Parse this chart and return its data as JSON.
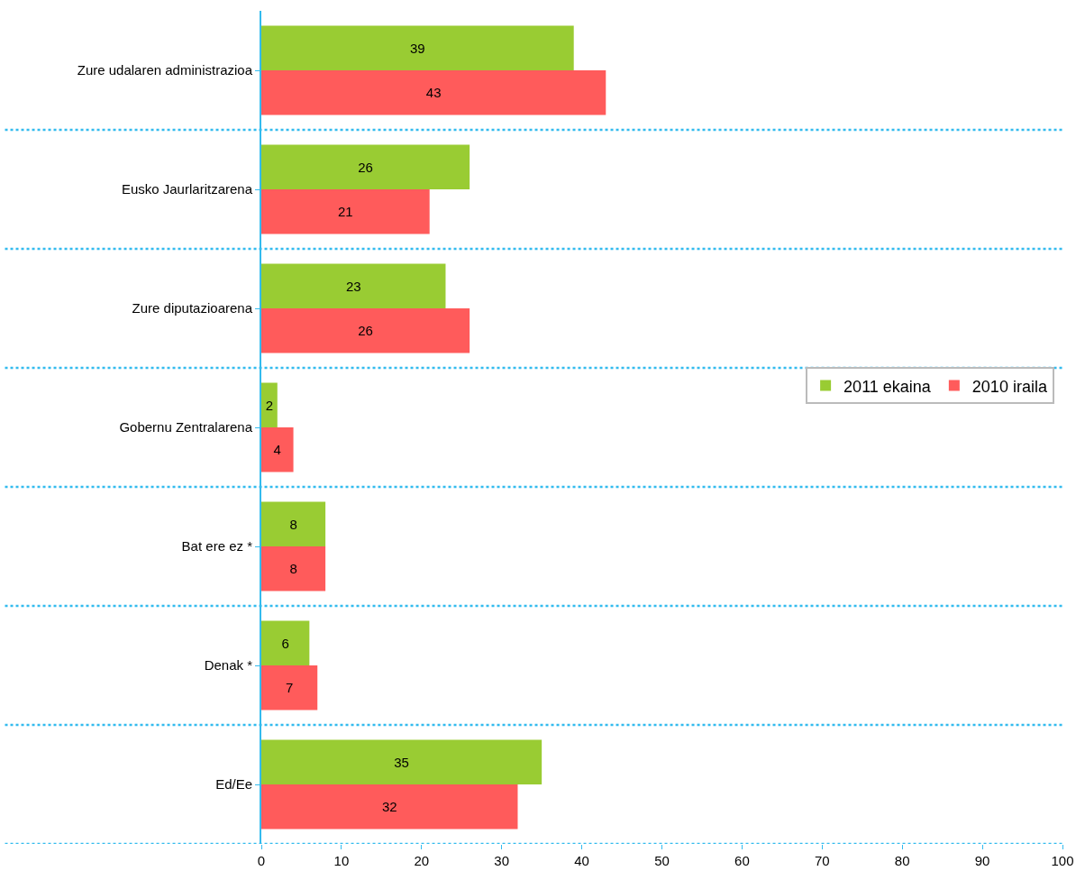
{
  "chart_data": {
    "type": "bar",
    "orientation": "horizontal",
    "categories": [
      "Zure udalaren administrazioa",
      "Eusko Jaurlaritzarena",
      "Zure diputazioarena",
      "Gobernu Zentralarena",
      "Bat ere ez *",
      "Denak *",
      "Ed/Ee"
    ],
    "series": [
      {
        "name": "2011 ekaina",
        "color": "#99cc33",
        "values": [
          39,
          26,
          23,
          2,
          8,
          6,
          35
        ]
      },
      {
        "name": "2010 iraila",
        "color": "#ff5b5b",
        "values": [
          43,
          21,
          26,
          4,
          8,
          7,
          32
        ]
      }
    ],
    "xlim": [
      0,
      100
    ],
    "xticks": [
      0,
      10,
      20,
      30,
      40,
      50,
      60,
      70,
      80,
      90,
      100
    ],
    "data_labels": true,
    "grid": "y",
    "legend": "right"
  }
}
